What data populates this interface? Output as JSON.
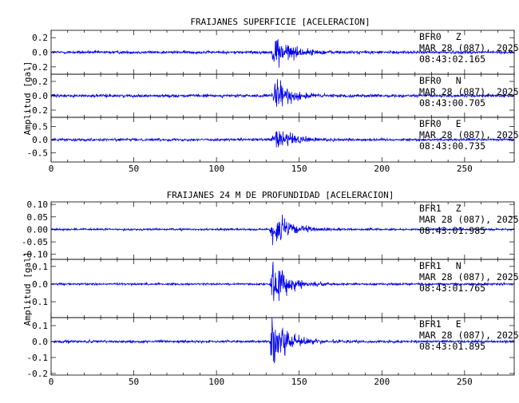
{
  "colors": {
    "trace": "#0000ee",
    "axis": "#000000",
    "background": "#ffffff"
  },
  "chart_data": [
    {
      "type": "line",
      "title": "FRAIJANES SUPERFICIE [ACELERACION]",
      "ylabel": "Amplitud [gal]",
      "xlim": [
        0,
        280
      ],
      "x_ticks": [
        "0",
        "50",
        "100",
        "150",
        "200",
        "250"
      ],
      "xlabel": "",
      "grid": false,
      "panels": [
        {
          "ylim": [
            -0.3,
            0.3
          ],
          "y_ticks": [
            0.2,
            0.0,
            -0.2
          ],
          "y_tick_labels": [
            "0.2",
            "0.0",
            "-0.2"
          ],
          "station": "BFR0",
          "component": "Z",
          "date": "MAR 28 (087), 2025",
          "time": "08:43:02.165",
          "onset_s": 133,
          "peak_s": 136,
          "peak_amplitude": 0.24,
          "noise_amplitude": 0.02
        },
        {
          "ylim": [
            -0.3,
            0.3
          ],
          "y_ticks": [
            0.2,
            0.0,
            -0.2
          ],
          "y_tick_labels": [
            "0.2",
            "0.0",
            "-0.2"
          ],
          "station": "BFR0",
          "component": "N",
          "date": "MAR 28 (087), 2025",
          "time": "08:43:00.705",
          "onset_s": 133,
          "peak_s": 136,
          "peak_amplitude": 0.22,
          "noise_amplitude": 0.02
        },
        {
          "ylim": [
            -0.85,
            0.85
          ],
          "y_ticks": [
            0.5,
            0.0,
            -0.5
          ],
          "y_tick_labels": [
            "0.5",
            "0.0",
            "-0.5"
          ],
          "station": "BFR0",
          "component": "E",
          "date": "MAR 28 (087), 2025",
          "time": "08:43:00.735",
          "onset_s": 133,
          "peak_s": 136,
          "peak_amplitude": 0.55,
          "noise_amplitude": 0.05
        }
      ]
    },
    {
      "type": "line",
      "title": "FRAIJANES 24 M DE PROFUNDIDAD [ACELERACION]",
      "ylabel": "Amplitud [gal]",
      "xlim": [
        0,
        280
      ],
      "x_ticks": [
        "0",
        "50",
        "100",
        "150",
        "200",
        "250"
      ],
      "xlabel": "",
      "grid": false,
      "panels": [
        {
          "ylim": [
            -0.12,
            0.11
          ],
          "y_ticks": [
            0.1,
            0.05,
            0.0,
            -0.05,
            -0.1
          ],
          "y_tick_labels": [
            "0.10",
            "0.05",
            "0.00",
            "-0.05",
            "-0.10"
          ],
          "station": "BFR1",
          "component": "Z",
          "date": "MAR 28 (087), 2025",
          "time": "08:43:01.985",
          "onset_s": 132,
          "peak_s": 134,
          "peak_amplitude": 0.085,
          "noise_amplitude": 0.004
        },
        {
          "ylim": [
            -0.19,
            0.14
          ],
          "y_ticks": [
            0.1,
            0.0,
            -0.1
          ],
          "y_tick_labels": [
            "0.1",
            "0.0",
            "-0.1"
          ],
          "station": "BFR1",
          "component": "N",
          "date": "MAR 28 (087), 2025",
          "time": "08:43:01.765",
          "onset_s": 132,
          "peak_s": 134,
          "peak_amplitude": 0.13,
          "noise_amplitude": 0.006
        },
        {
          "ylim": [
            -0.21,
            0.15
          ],
          "y_ticks": [
            0.1,
            0.0,
            -0.1,
            -0.2
          ],
          "y_tick_labels": [
            "0.1",
            "0.0",
            "-0.1",
            "-0.2"
          ],
          "station": "BFR1",
          "component": "E",
          "date": "MAR 28 (087), 2025",
          "time": "08:43:01.895",
          "onset_s": 132,
          "peak_s": 134,
          "peak_amplitude": 0.2,
          "noise_amplitude": 0.008
        }
      ]
    }
  ]
}
